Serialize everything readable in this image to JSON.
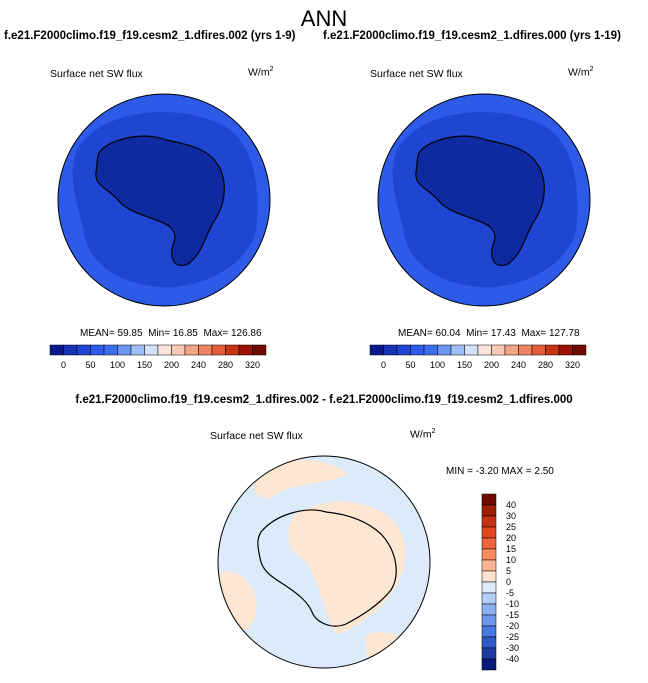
{
  "title": "ANN",
  "panels": [
    {
      "case": "f.e21.F2000climo.f19_f19.cesm2_1.dfires.002 (yrs 1-9)",
      "variable": "Surface net SW flux",
      "unit": "W/m",
      "unit_sup": "2",
      "stats": {
        "mean_label": "MEAN=",
        "mean": "59.85",
        "min_label": "Min=",
        "min": "16.85",
        "max_label": "Max=",
        "max": "126.86"
      }
    },
    {
      "case": "f.e21.F2000climo.f19_f19.cesm2_1.dfires.000 (yrs 1-19)",
      "variable": "Surface net SW flux",
      "unit": "W/m",
      "unit_sup": "2",
      "stats": {
        "mean_label": "MEAN=",
        "mean": "60.04",
        "min_label": "Min=",
        "min": "17.43",
        "max_label": "Max=",
        "max": "127.78"
      }
    }
  ],
  "colorbar_main": {
    "colors": [
      "#0a1a8c",
      "#1432b4",
      "#1e46d2",
      "#2d5ae6",
      "#3c6ef0",
      "#6e96f5",
      "#a0bef8",
      "#d2e1fa",
      "#fae6dc",
      "#fac8b4",
      "#f5a587",
      "#f08264",
      "#e65a3c",
      "#c83214",
      "#961400",
      "#6e0a00"
    ],
    "labels": [
      "0",
      "50",
      "100",
      "150",
      "200",
      "240",
      "280",
      "320"
    ]
  },
  "difference": {
    "title": "f.e21.F2000climo.f19_f19.cesm2_1.dfires.002 - f.e21.F2000climo.f19_f19.cesm2_1.dfires.000",
    "variable": "Surface net SW flux",
    "unit": "W/m",
    "unit_sup": "2",
    "min_label": "MIN =",
    "min": "-3.20",
    "max_label": "MAX =",
    "max": "2.50"
  },
  "colorbar_diff": {
    "colors": [
      "#6e0a00",
      "#a01e00",
      "#c83214",
      "#e1461e",
      "#f0643c",
      "#fa8c5a",
      "#fdb493",
      "#fde1cd",
      "#dcebfa",
      "#b4cdf5",
      "#8cafef",
      "#6e96eb",
      "#4678e6",
      "#2d5ac8",
      "#1e3ca0",
      "#0a1a78"
    ],
    "labels": [
      "40",
      "30",
      "25",
      "20",
      "15",
      "10",
      "5",
      "0",
      "-5",
      "-10",
      "-15",
      "-20",
      "-25",
      "-30",
      "-40"
    ]
  },
  "colors": {
    "ocean_outer": "#2d5ae6",
    "ocean_mid": "#1e46d2",
    "antarctica": "#0f2aa0",
    "diff_neg": "#dcebfa",
    "diff_pos": "#fde6d2"
  }
}
